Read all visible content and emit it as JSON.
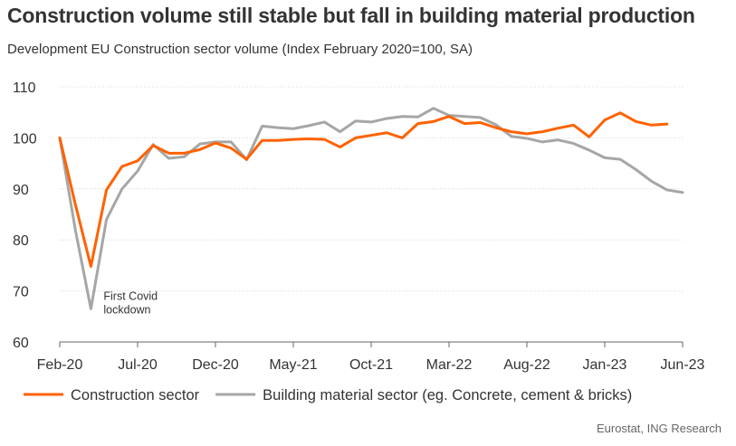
{
  "chart_data": {
    "type": "line",
    "title": "Construction volume still stable but fall in building material production",
    "subtitle": "Development EU Construction sector volume (Index February 2020=100, SA)",
    "source": "Eurostat, ING Research",
    "xlabel": "",
    "ylabel": "",
    "ylim": [
      60,
      110
    ],
    "yticks": [
      60,
      70,
      80,
      90,
      100,
      110
    ],
    "x_tick_labels": [
      {
        "index": 0,
        "label": "Feb-20"
      },
      {
        "index": 5,
        "label": "Jul-20"
      },
      {
        "index": 10,
        "label": "Dec-20"
      },
      {
        "index": 15,
        "label": "May-21"
      },
      {
        "index": 20,
        "label": "Oct-21"
      },
      {
        "index": 25,
        "label": "Mar-22"
      },
      {
        "index": 30,
        "label": "Aug-22"
      },
      {
        "index": 35,
        "label": "Jan-23"
      },
      {
        "index": 40,
        "label": "Jun-23"
      }
    ],
    "x_count": 41,
    "grid": "horizontal",
    "legend_position": "bottom",
    "annotations": [
      {
        "index": 2,
        "value": 66.5,
        "lines": [
          "First Covid",
          "lockdown"
        ]
      }
    ],
    "series": [
      {
        "name": "Construction sector",
        "color": "#FF6200",
        "values": [
          100,
          87,
          74.8,
          89.8,
          94.4,
          95.5,
          98.5,
          97,
          97,
          97.7,
          99,
          98,
          95.8,
          99.5,
          99.5,
          99.7,
          99.8,
          99.7,
          98.2,
          100,
          100.5,
          101,
          100,
          102.8,
          103.2,
          104.2,
          102.8,
          103,
          102,
          101.2,
          100.8,
          101.2,
          101.9,
          102.5,
          100.2,
          103.5,
          104.9,
          103.2,
          102.5,
          102.7,
          null
        ]
      },
      {
        "name": "Building material sector (eg. Concrete, cement & bricks)",
        "color": "#A6A6A6",
        "values": [
          100,
          82,
          66.5,
          84,
          90,
          93.5,
          98.7,
          96,
          96.3,
          98.8,
          99.2,
          99.2,
          95.7,
          102.3,
          102,
          101.8,
          102.4,
          103.1,
          101.2,
          103.3,
          103.1,
          103.8,
          104.2,
          104.1,
          105.8,
          104.4,
          104.2,
          104,
          102.6,
          100.3,
          99.9,
          99.2,
          99.6,
          98.9,
          97.6,
          96.1,
          95.8,
          93.8,
          91.5,
          89.8,
          89.3
        ]
      }
    ]
  }
}
